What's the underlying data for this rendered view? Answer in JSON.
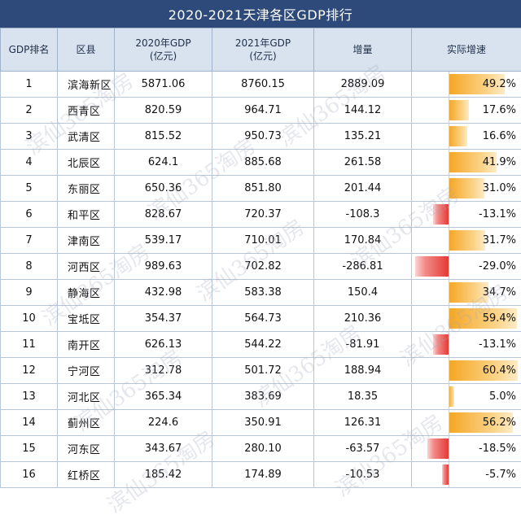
{
  "title": "2020-2021天津各区GDP排行",
  "watermark_text": "滨仙365淘房",
  "headers": {
    "rank": "GDP排名",
    "district": "区县",
    "gdp2020": "2020年GDP\n(亿元)",
    "gdp2021": "2021年GDP\n(亿元)",
    "increase": "增量",
    "growth": "实际增速"
  },
  "colors": {
    "positive": "#f5a623",
    "negative": "#e53935",
    "title_bg": "#2e4a7a",
    "header_bg": "#d9e3ef"
  },
  "chart_data": {
    "type": "table",
    "title": "2020-2021天津各区GDP排行",
    "columns": [
      "GDP排名",
      "区县",
      "2020年GDP(亿元)",
      "2021年GDP(亿元)",
      "增量",
      "实际增速"
    ],
    "rows": [
      {
        "rank": "1",
        "district": "滨海新区",
        "gdp2020": "5871.06",
        "gdp2021": "8760.15",
        "increase": "2889.09",
        "growth": "49.2%",
        "growth_value": 49.2
      },
      {
        "rank": "2",
        "district": "西青区",
        "gdp2020": "820.59",
        "gdp2021": "964.71",
        "increase": "144.12",
        "growth": "17.6%",
        "growth_value": 17.6
      },
      {
        "rank": "3",
        "district": "武清区",
        "gdp2020": "815.52",
        "gdp2021": "950.73",
        "increase": "135.21",
        "growth": "16.6%",
        "growth_value": 16.6
      },
      {
        "rank": "4",
        "district": "北辰区",
        "gdp2020": "624.1",
        "gdp2021": "885.68",
        "increase": "261.58",
        "growth": "41.9%",
        "growth_value": 41.9
      },
      {
        "rank": "5",
        "district": "东丽区",
        "gdp2020": "650.36",
        "gdp2021": "851.80",
        "increase": "201.44",
        "growth": "31.0%",
        "growth_value": 31.0
      },
      {
        "rank": "6",
        "district": "和平区",
        "gdp2020": "828.67",
        "gdp2021": "720.37",
        "increase": "-108.3",
        "growth": "-13.1%",
        "growth_value": -13.1
      },
      {
        "rank": "7",
        "district": "津南区",
        "gdp2020": "539.17",
        "gdp2021": "710.01",
        "increase": "170.84",
        "growth": "31.7%",
        "growth_value": 31.7
      },
      {
        "rank": "8",
        "district": "河西区",
        "gdp2020": "989.63",
        "gdp2021": "702.82",
        "increase": "-286.81",
        "growth": "-29.0%",
        "growth_value": -29.0
      },
      {
        "rank": "9",
        "district": "静海区",
        "gdp2020": "432.98",
        "gdp2021": "583.38",
        "increase": "150.4",
        "growth": "34.7%",
        "growth_value": 34.7
      },
      {
        "rank": "10",
        "district": "宝坻区",
        "gdp2020": "354.37",
        "gdp2021": "564.73",
        "increase": "210.36",
        "growth": "59.4%",
        "growth_value": 59.4
      },
      {
        "rank": "11",
        "district": "南开区",
        "gdp2020": "626.13",
        "gdp2021": "544.22",
        "increase": "-81.91",
        "growth": "-13.1%",
        "growth_value": -13.1
      },
      {
        "rank": "12",
        "district": "宁河区",
        "gdp2020": "312.78",
        "gdp2021": "501.72",
        "increase": "188.94",
        "growth": "60.4%",
        "growth_value": 60.4
      },
      {
        "rank": "13",
        "district": "河北区",
        "gdp2020": "365.34",
        "gdp2021": "383.69",
        "increase": "18.35",
        "growth": "5.0%",
        "growth_value": 5.0
      },
      {
        "rank": "14",
        "district": "蓟州区",
        "gdp2020": "224.6",
        "gdp2021": "350.91",
        "increase": "126.31",
        "growth": "56.2%",
        "growth_value": 56.2
      },
      {
        "rank": "15",
        "district": "河东区",
        "gdp2020": "343.67",
        "gdp2021": "280.10",
        "increase": "-63.57",
        "growth": "-18.5%",
        "growth_value": -18.5
      },
      {
        "rank": "16",
        "district": "红桥区",
        "gdp2020": "185.42",
        "gdp2021": "174.89",
        "increase": "-10.53",
        "growth": "-5.7%",
        "growth_value": -5.7
      }
    ],
    "growth_range": [
      -29.0,
      60.4
    ]
  }
}
